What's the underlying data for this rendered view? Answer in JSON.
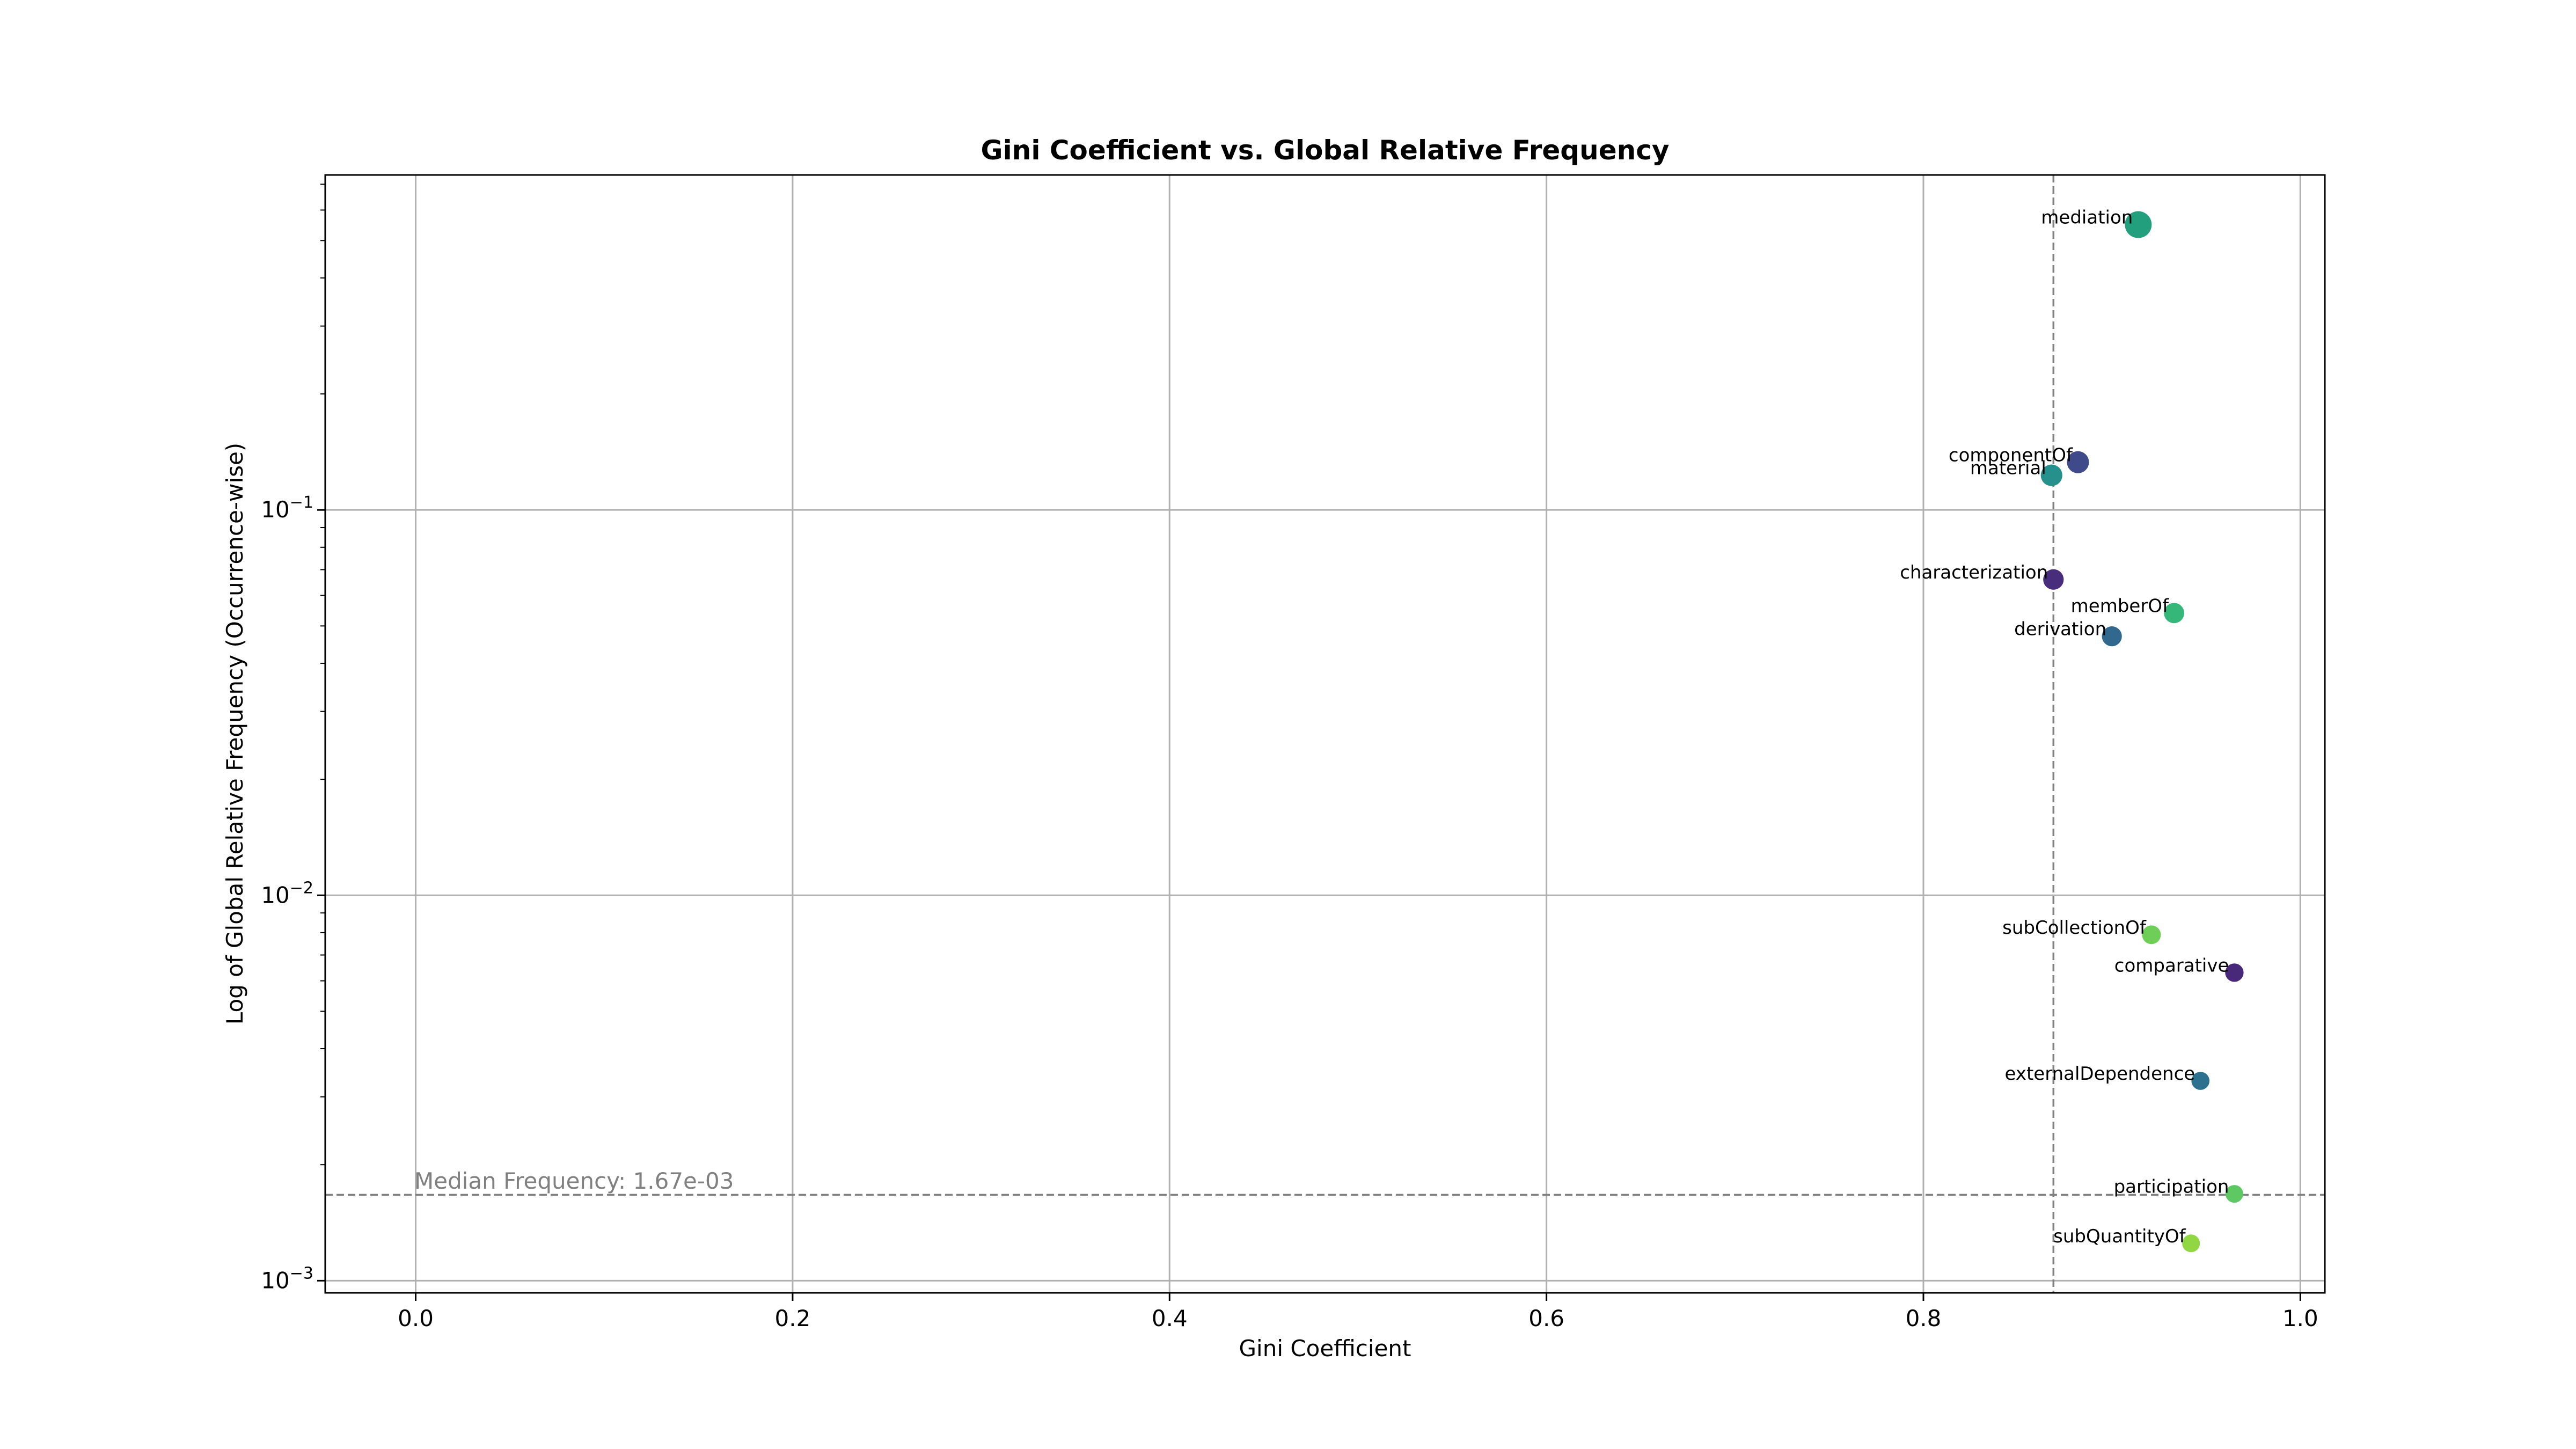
{
  "chart_data": {
    "type": "scatter",
    "title": "Gini Coefficient vs. Global Relative Frequency",
    "xlabel": "Gini Coefficient",
    "ylabel": "Log of Global Relative Frequency (Occurrence-wise)",
    "xlim": [
      -0.048,
      1.013
    ],
    "ylim": [
      0.00093,
      0.74
    ],
    "yscale": "log",
    "grid": true,
    "x_ticks": [
      0.0,
      0.2,
      0.4,
      0.6,
      0.8,
      1.0
    ],
    "x_tick_labels": [
      "0.0",
      "0.2",
      "0.4",
      "0.6",
      "0.8",
      "1.0"
    ],
    "y_ticks": [
      0.001,
      0.01,
      0.1
    ],
    "y_tick_labels": [
      {
        "base": "10",
        "exp": "−3"
      },
      {
        "base": "10",
        "exp": "−2"
      },
      {
        "base": "10",
        "exp": "−1"
      }
    ],
    "median_frequency": 0.00167,
    "median_label": "Median Frequency: 1.67e-03",
    "median_gini": 0.869,
    "points": [
      {
        "label": "mediation",
        "x": 0.914,
        "y": 0.55,
        "color": "#22a07e",
        "size_rel": 1.0
      },
      {
        "label": "componentOf",
        "x": 0.882,
        "y": 0.133,
        "color": "#3e4a89",
        "size_rel": 0.52
      },
      {
        "label": "material",
        "x": 0.868,
        "y": 0.123,
        "color": "#26908c",
        "size_rel": 0.48
      },
      {
        "label": "characterization",
        "x": 0.869,
        "y": 0.066,
        "color": "#472d7b",
        "size_rel": 0.4
      },
      {
        "label": "memberOf",
        "x": 0.933,
        "y": 0.054,
        "color": "#35b779",
        "size_rel": 0.38
      },
      {
        "label": "derivation",
        "x": 0.9,
        "y": 0.047,
        "color": "#31688e",
        "size_rel": 0.36
      },
      {
        "label": "subCollectionOf",
        "x": 0.921,
        "y": 0.0079,
        "color": "#6ece58",
        "size_rel": 0.28
      },
      {
        "label": "comparative",
        "x": 0.965,
        "y": 0.0063,
        "color": "#482878",
        "size_rel": 0.26
      },
      {
        "label": "externalDependence",
        "x": 0.947,
        "y": 0.0033,
        "color": "#2c728e",
        "size_rel": 0.24
      },
      {
        "label": "participation",
        "x": 0.965,
        "y": 0.00168,
        "color": "#5ec962",
        "size_rel": 0.22
      },
      {
        "label": "subQuantityOf",
        "x": 0.942,
        "y": 0.00125,
        "color": "#90d743",
        "size_rel": 0.22
      }
    ]
  }
}
